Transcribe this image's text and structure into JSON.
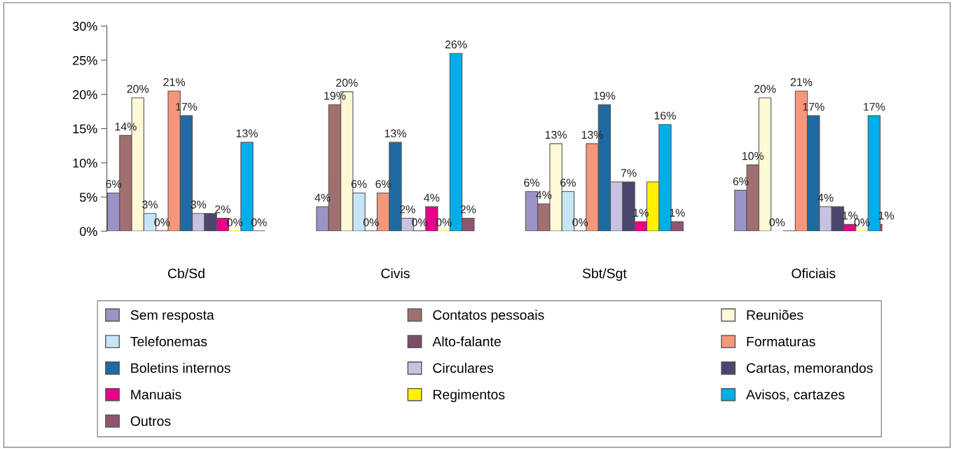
{
  "chart_data": {
    "type": "bar",
    "categories": [
      "Cb/Sd",
      "Civis",
      "Sbt/Sgt",
      "Oficiais"
    ],
    "ylim": [
      0,
      30
    ],
    "yticks": [
      {
        "value": 0,
        "label": "0%"
      },
      {
        "value": 5,
        "label": "5%"
      },
      {
        "value": 10,
        "label": "10%"
      },
      {
        "value": 15,
        "label": "15%"
      },
      {
        "value": 20,
        "label": "20%"
      },
      {
        "value": 25,
        "label": "25%"
      },
      {
        "value": 30,
        "label": "30%"
      }
    ],
    "grid": false,
    "legend": "bottom",
    "series": [
      {
        "name": "Sem resposta",
        "color": "#9b93c6",
        "values": [
          5.6,
          3.6,
          5.8,
          6.0
        ],
        "value_labels": [
          "6%",
          "4%",
          "6%",
          "6%"
        ]
      },
      {
        "name": "Contatos pessoais",
        "color": "#a07070",
        "values": [
          14,
          18.5,
          4.0,
          9.7
        ],
        "value_labels": [
          "14%",
          "19%",
          "4%",
          "10%"
        ]
      },
      {
        "name": "Reuniões",
        "color": "#fff9d6",
        "values": [
          19.5,
          20.4,
          12.8,
          19.5
        ],
        "value_labels": [
          "20%",
          "20%",
          "13%",
          "20%"
        ]
      },
      {
        "name": "Telefonemas",
        "color": "#c6e6f6",
        "values": [
          2.6,
          5.6,
          5.8,
          0
        ],
        "value_labels": [
          "3%",
          "6%",
          "6%",
          "0%"
        ]
      },
      {
        "name": "Alto-falante",
        "color": "#7a4f66",
        "values": [
          0,
          0,
          0,
          0
        ],
        "value_labels": [
          "0%",
          "0%",
          "0%",
          null
        ]
      },
      {
        "name": "Formaturas",
        "color": "#f4977a",
        "values": [
          20.5,
          5.6,
          12.8,
          20.5
        ],
        "value_labels": [
          "21%",
          "6%",
          "13%",
          "21%"
        ]
      },
      {
        "name": "Boletins internos",
        "color": "#1f6aa3",
        "values": [
          16.9,
          13,
          18.5,
          16.9
        ],
        "value_labels": [
          "17%",
          "13%",
          "19%",
          "17%"
        ]
      },
      {
        "name": "Circulares",
        "color": "#c6c2e0",
        "values": [
          2.6,
          1.9,
          7.2,
          3.6
        ],
        "value_labels": [
          "3%",
          "2%",
          null,
          "4%"
        ]
      },
      {
        "name": "Cartas, memorandos",
        "color": "#4a466e",
        "values": [
          2.6,
          0,
          7.2,
          3.6
        ],
        "value_labels": [
          null,
          "0%",
          "7%",
          null
        ]
      },
      {
        "name": "Manuais",
        "color": "#e8008a",
        "values": [
          1.9,
          3.6,
          1.4,
          1.0
        ],
        "value_labels": [
          "2%",
          "4%",
          "1%",
          "1%"
        ]
      },
      {
        "name": "Regimentos",
        "color": "#fff200",
        "values": [
          0,
          0,
          7.2,
          0
        ],
        "value_labels": [
          "0%",
          "0%",
          null,
          "0%"
        ]
      },
      {
        "name": "Avisos, cartazes",
        "color": "#00aeea",
        "values": [
          13,
          26,
          15.6,
          16.9
        ],
        "value_labels": [
          "13%",
          "26%",
          "16%",
          "17%"
        ]
      },
      {
        "name": "Outros",
        "color": "#8e5571",
        "values": [
          0,
          1.9,
          1.4,
          1.0
        ],
        "value_labels": [
          "0%",
          "2%",
          "1%",
          "1%"
        ]
      }
    ]
  }
}
